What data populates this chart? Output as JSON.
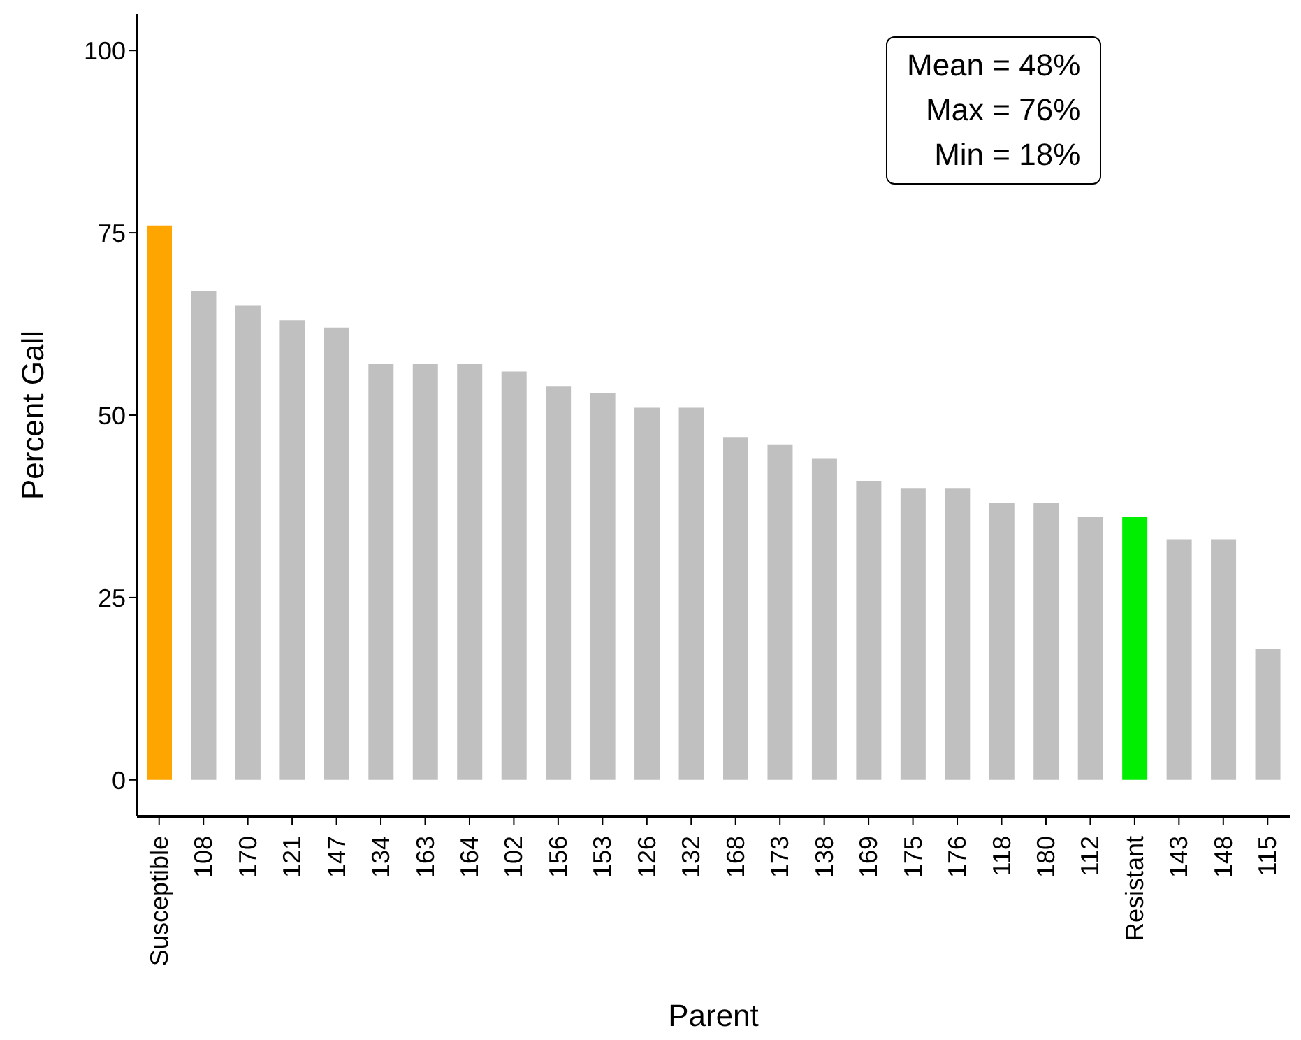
{
  "chart_data": {
    "type": "bar",
    "xlabel": "Parent",
    "ylabel": "Percent Gall",
    "categories": [
      "Susceptible",
      "108",
      "170",
      "121",
      "147",
      "134",
      "163",
      "164",
      "102",
      "156",
      "153",
      "126",
      "132",
      "168",
      "173",
      "138",
      "169",
      "175",
      "176",
      "118",
      "180",
      "112",
      "Resistant",
      "143",
      "148",
      "115"
    ],
    "values": [
      76,
      67,
      65,
      63,
      62,
      57,
      57,
      57,
      56,
      54,
      53,
      51,
      51,
      47,
      46,
      44,
      41,
      40,
      40,
      38,
      38,
      36,
      36,
      33,
      33,
      18
    ],
    "colors": [
      "#ffa500",
      "#c0c0c0",
      "#c0c0c0",
      "#c0c0c0",
      "#c0c0c0",
      "#c0c0c0",
      "#c0c0c0",
      "#c0c0c0",
      "#c0c0c0",
      "#c0c0c0",
      "#c0c0c0",
      "#c0c0c0",
      "#c0c0c0",
      "#c0c0c0",
      "#c0c0c0",
      "#c0c0c0",
      "#c0c0c0",
      "#c0c0c0",
      "#c0c0c0",
      "#c0c0c0",
      "#c0c0c0",
      "#c0c0c0",
      "#00ee00",
      "#c0c0c0",
      "#c0c0c0",
      "#c0c0c0"
    ],
    "ylim": [
      -5,
      105
    ],
    "yticks": [
      0,
      25,
      50,
      75,
      100
    ],
    "grid": false,
    "legend": false,
    "annotations": [
      "Mean = 48%",
      "Max = 76%",
      "Min = 18%"
    ]
  }
}
